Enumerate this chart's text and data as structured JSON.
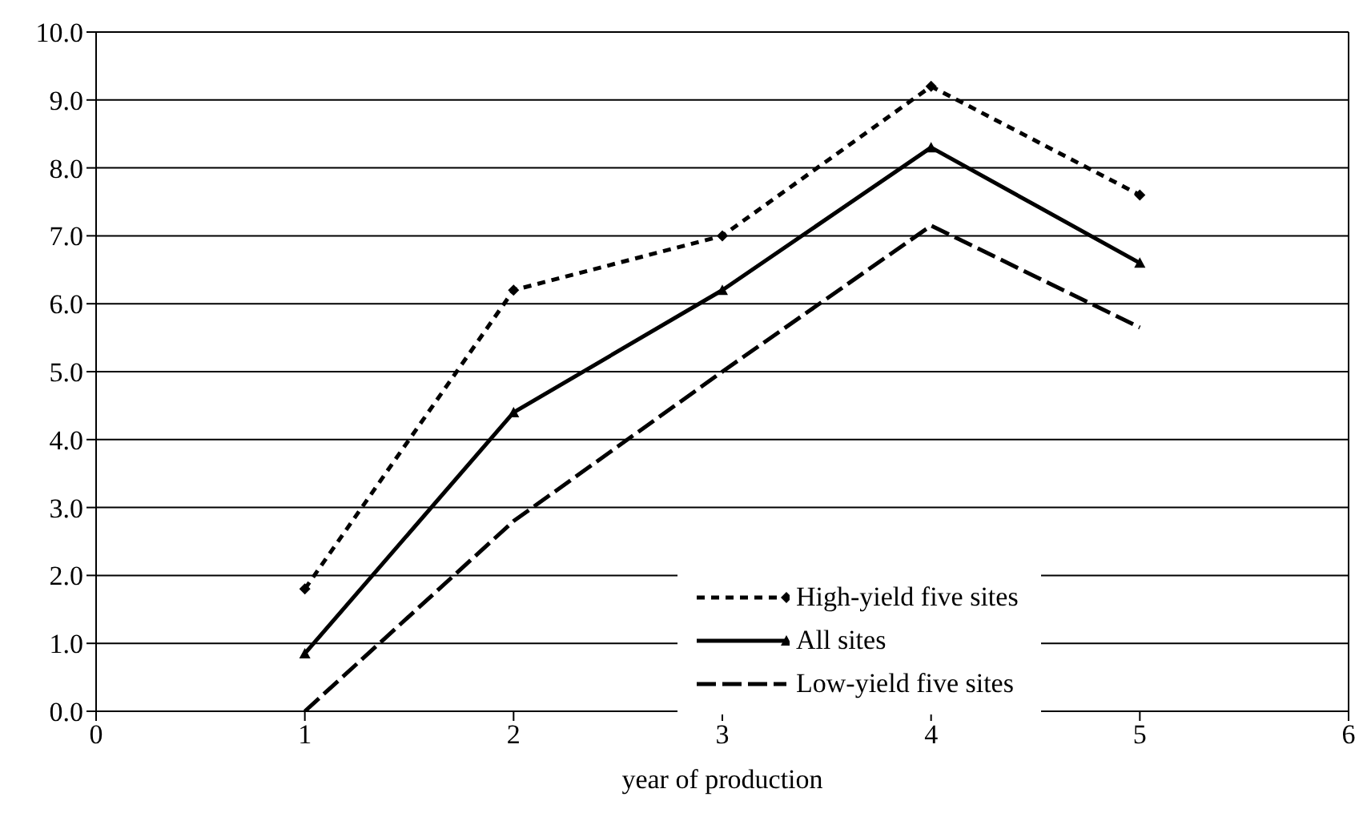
{
  "chart_data": {
    "type": "line",
    "xlabel": "year of production",
    "x": [
      1,
      2,
      3,
      4,
      5
    ],
    "series": [
      {
        "name": "High-yield five sites",
        "color": "#000000",
        "values": [
          1.8,
          6.2,
          7.0,
          9.2,
          7.6
        ],
        "line_style": "dotted",
        "marker": "diamond"
      },
      {
        "name": "All sites",
        "color": "#000000",
        "values": [
          0.85,
          4.4,
          6.2,
          8.3,
          6.6
        ],
        "line_style": "solid",
        "marker": "triangle"
      },
      {
        "name": "Low-yield five sites",
        "color": "#000000",
        "values": [
          0.0,
          2.8,
          5.0,
          7.15,
          5.65
        ],
        "line_style": "dashed",
        "marker": "none"
      }
    ],
    "xlim": [
      0,
      6
    ],
    "xticks": [
      0,
      1,
      2,
      3,
      4,
      5,
      6
    ],
    "ylim": [
      0,
      10
    ],
    "yticks": [
      {
        "value": 0,
        "label": "0.0"
      },
      {
        "value": 1,
        "label": "1.0"
      },
      {
        "value": 2,
        "label": "2.0"
      },
      {
        "value": 3,
        "label": "3.0"
      },
      {
        "value": 4,
        "label": "4.0"
      },
      {
        "value": 5,
        "label": "5.0"
      },
      {
        "value": 6,
        "label": "6.0"
      },
      {
        "value": 7,
        "label": "7.0"
      },
      {
        "value": 8,
        "label": "8.0"
      },
      {
        "value": 9,
        "label": "9.0"
      },
      {
        "value": 10,
        "label": "10.0"
      }
    ],
    "grid": "y",
    "legend": "bottom right"
  }
}
